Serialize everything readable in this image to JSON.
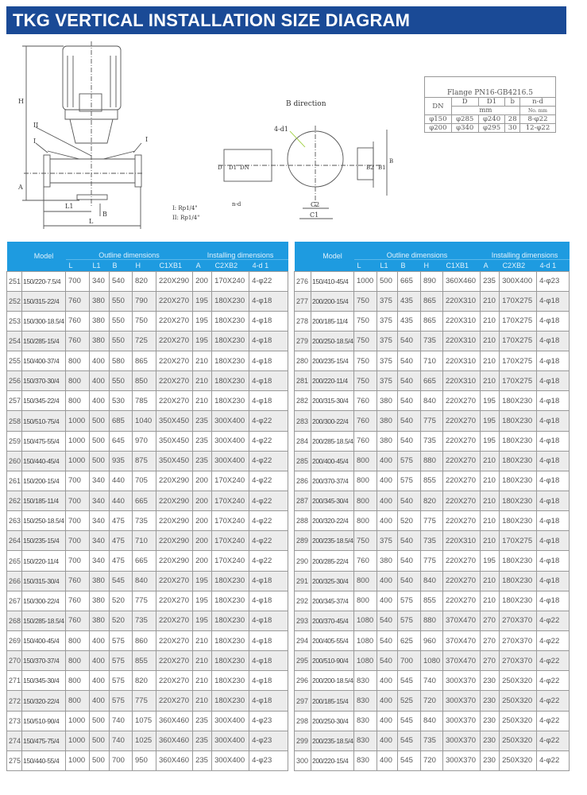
{
  "title": "TKG VERTICAL INSTALLATION SIZE DIAGRAM",
  "colors": {
    "title_bg": "#1a4a96",
    "header_bg": "#1e9be0",
    "alt_row": "#ececec"
  },
  "diagram": {
    "front_labels": {
      "H": "H",
      "A": "A",
      "L1": "L1",
      "L": "L",
      "B_arrow": "B",
      "port_I_left": "I",
      "port_I_right": "I",
      "port_II": "II"
    },
    "notes": [
      "I: Rp1/4\"",
      "II: Rp1/4\""
    ],
    "b_direction": {
      "title": "B direction",
      "d1": "4-d1",
      "nd": "n-d",
      "D": "D",
      "D1": "D1",
      "DN": "DN",
      "B2": "B2",
      "B1": "B1",
      "B": "B",
      "C2": "C2",
      "C1": "C1"
    }
  },
  "flange": {
    "title": "Flange PN16-GB4216.5",
    "headers": [
      "DN",
      "D",
      "D1",
      "b",
      "n-d"
    ],
    "units": [
      "mm",
      "No.  mm"
    ],
    "rows": [
      [
        "φ150",
        "φ285",
        "φ240",
        "28",
        "8-φ22"
      ],
      [
        "φ200",
        "φ340",
        "φ295",
        "30",
        "12-φ22"
      ]
    ]
  },
  "table": {
    "model_header": "Model",
    "outline_header": "Outline dimensions",
    "installing_header": "Installing dimensions",
    "columns": [
      "L",
      "L1",
      "B",
      "H",
      "C1XB1",
      "A",
      "C2XB2",
      "4-d 1"
    ],
    "left_rows": [
      [
        "251",
        "150/220-7.5/4",
        "700",
        "340",
        "540",
        "820",
        "220X290",
        "200",
        "170X240",
        "4-φ22"
      ],
      [
        "252",
        "150/315-22/4",
        "760",
        "380",
        "550",
        "790",
        "220X270",
        "195",
        "180X230",
        "4-φ18"
      ],
      [
        "253",
        "150/300-18.5/4",
        "760",
        "380",
        "550",
        "750",
        "220X270",
        "195",
        "180X230",
        "4-φ18"
      ],
      [
        "254",
        "150/285-15/4",
        "760",
        "380",
        "550",
        "725",
        "220X270",
        "195",
        "180X230",
        "4-φ18"
      ],
      [
        "255",
        "150/400-37/4",
        "800",
        "400",
        "580",
        "865",
        "220X270",
        "210",
        "180X230",
        "4-φ18"
      ],
      [
        "256",
        "150/370-30/4",
        "800",
        "400",
        "550",
        "850",
        "220X270",
        "210",
        "180X230",
        "4-φ18"
      ],
      [
        "257",
        "150/345-22/4",
        "800",
        "400",
        "530",
        "785",
        "220X270",
        "210",
        "180X230",
        "4-φ18"
      ],
      [
        "258",
        "150/510-75/4",
        "1000",
        "500",
        "685",
        "1040",
        "350X450",
        "235",
        "300X400",
        "4-φ22"
      ],
      [
        "259",
        "150/475-55/4",
        "1000",
        "500",
        "645",
        "970",
        "350X450",
        "235",
        "300X400",
        "4-φ22"
      ],
      [
        "260",
        "150/440-45/4",
        "1000",
        "500",
        "935",
        "875",
        "350X450",
        "235",
        "300X400",
        "4-φ22"
      ],
      [
        "261",
        "150/200-15/4",
        "700",
        "340",
        "440",
        "705",
        "220X290",
        "200",
        "170X240",
        "4-φ22"
      ],
      [
        "262",
        "150/185-11/4",
        "700",
        "340",
        "440",
        "665",
        "220X290",
        "200",
        "170X240",
        "4-φ22"
      ],
      [
        "263",
        "150/250-18.5/4",
        "700",
        "340",
        "475",
        "735",
        "220X290",
        "200",
        "170X240",
        "4-φ22"
      ],
      [
        "264",
        "150/235-15/4",
        "700",
        "340",
        "475",
        "710",
        "220X290",
        "200",
        "170X240",
        "4-φ22"
      ],
      [
        "265",
        "150/220-11/4",
        "700",
        "340",
        "475",
        "665",
        "220X290",
        "200",
        "170X240",
        "4-φ22"
      ],
      [
        "266",
        "150/315-30/4",
        "760",
        "380",
        "545",
        "840",
        "220X270",
        "195",
        "180X230",
        "4-φ18"
      ],
      [
        "267",
        "150/300-22/4",
        "760",
        "380",
        "520",
        "775",
        "220X270",
        "195",
        "180X230",
        "4-φ18"
      ],
      [
        "268",
        "150/285-18.5/4",
        "760",
        "380",
        "520",
        "735",
        "220X270",
        "195",
        "180X230",
        "4-φ18"
      ],
      [
        "269",
        "150/400-45/4",
        "800",
        "400",
        "575",
        "860",
        "220X270",
        "210",
        "180X230",
        "4-φ18"
      ],
      [
        "270",
        "150/370-37/4",
        "800",
        "400",
        "575",
        "855",
        "220X270",
        "210",
        "180X230",
        "4-φ18"
      ],
      [
        "271",
        "150/345-30/4",
        "800",
        "400",
        "575",
        "820",
        "220X270",
        "210",
        "180X230",
        "4-φ18"
      ],
      [
        "272",
        "150/320-22/4",
        "800",
        "400",
        "575",
        "775",
        "220X270",
        "210",
        "180X230",
        "4-φ18"
      ],
      [
        "273",
        "150/510-90/4",
        "1000",
        "500",
        "740",
        "1075",
        "360X460",
        "235",
        "300X400",
        "4-φ23"
      ],
      [
        "274",
        "150/475-75/4",
        "1000",
        "500",
        "740",
        "1025",
        "360X460",
        "235",
        "300X400",
        "4-φ23"
      ],
      [
        "275",
        "150/440-55/4",
        "1000",
        "500",
        "700",
        "950",
        "360X460",
        "235",
        "300X400",
        "4-φ23"
      ]
    ],
    "right_rows": [
      [
        "276",
        "150/410-45/4",
        "1000",
        "500",
        "665",
        "890",
        "360X460",
        "235",
        "300X400",
        "4-φ23"
      ],
      [
        "277",
        "200/200-15/4",
        "750",
        "375",
        "435",
        "865",
        "220X310",
        "210",
        "170X275",
        "4-φ18"
      ],
      [
        "278",
        "200/185-11/4",
        "750",
        "375",
        "435",
        "865",
        "220X310",
        "210",
        "170X275",
        "4-φ18"
      ],
      [
        "279",
        "200/250-18.5/4",
        "750",
        "375",
        "540",
        "735",
        "220X310",
        "210",
        "170X275",
        "4-φ18"
      ],
      [
        "280",
        "200/235-15/4",
        "750",
        "375",
        "540",
        "710",
        "220X310",
        "210",
        "170X275",
        "4-φ18"
      ],
      [
        "281",
        "200/220-11/4",
        "750",
        "375",
        "540",
        "665",
        "220X310",
        "210",
        "170X275",
        "4-φ18"
      ],
      [
        "282",
        "200/315-30/4",
        "760",
        "380",
        "540",
        "840",
        "220X270",
        "195",
        "180X230",
        "4-φ18"
      ],
      [
        "283",
        "200/300-22/4",
        "760",
        "380",
        "540",
        "775",
        "220X270",
        "195",
        "180X230",
        "4-φ18"
      ],
      [
        "284",
        "200/285-18.5/4",
        "760",
        "380",
        "540",
        "735",
        "220X270",
        "195",
        "180X230",
        "4-φ18"
      ],
      [
        "285",
        "200/400-45/4",
        "800",
        "400",
        "575",
        "880",
        "220X270",
        "210",
        "180X230",
        "4-φ18"
      ],
      [
        "286",
        "200/370-37/4",
        "800",
        "400",
        "575",
        "855",
        "220X270",
        "210",
        "180X230",
        "4-φ18"
      ],
      [
        "287",
        "200/345-30/4",
        "800",
        "400",
        "540",
        "820",
        "220X270",
        "210",
        "180X230",
        "4-φ18"
      ],
      [
        "288",
        "200/320-22/4",
        "800",
        "400",
        "520",
        "775",
        "220X270",
        "210",
        "180X230",
        "4-φ18"
      ],
      [
        "289",
        "200/235-18.5/4",
        "750",
        "375",
        "540",
        "735",
        "220X310",
        "210",
        "170X275",
        "4-φ18"
      ],
      [
        "290",
        "200/285-22/4",
        "760",
        "380",
        "540",
        "775",
        "220X270",
        "195",
        "180X230",
        "4-φ18"
      ],
      [
        "291",
        "200/325-30/4",
        "800",
        "400",
        "540",
        "840",
        "220X270",
        "210",
        "180X230",
        "4-φ18"
      ],
      [
        "292",
        "200/345-37/4",
        "800",
        "400",
        "575",
        "855",
        "220X270",
        "210",
        "180X230",
        "4-φ18"
      ],
      [
        "293",
        "200/370-45/4",
        "1080",
        "540",
        "575",
        "880",
        "370X470",
        "270",
        "270X370",
        "4-φ22"
      ],
      [
        "294",
        "200/405-55/4",
        "1080",
        "540",
        "625",
        "960",
        "370X470",
        "270",
        "270X370",
        "4-φ22"
      ],
      [
        "295",
        "200/510-90/4",
        "1080",
        "540",
        "700",
        "1080",
        "370X470",
        "270",
        "270X370",
        "4-φ22"
      ],
      [
        "296",
        "200/200-18.5/4",
        "830",
        "400",
        "545",
        "740",
        "300X370",
        "230",
        "250X320",
        "4-φ22"
      ],
      [
        "297",
        "200/185-15/4",
        "830",
        "400",
        "525",
        "720",
        "300X370",
        "230",
        "250X320",
        "4-φ22"
      ],
      [
        "298",
        "200/250-30/4",
        "830",
        "400",
        "545",
        "840",
        "300X370",
        "230",
        "250X320",
        "4-φ22"
      ],
      [
        "299",
        "200/235-18.5/4",
        "830",
        "400",
        "545",
        "735",
        "300X370",
        "230",
        "250X320",
        "4-φ22"
      ],
      [
        "300",
        "200/220-15/4",
        "830",
        "400",
        "545",
        "720",
        "300X370",
        "230",
        "250X320",
        "4-φ22"
      ]
    ]
  }
}
